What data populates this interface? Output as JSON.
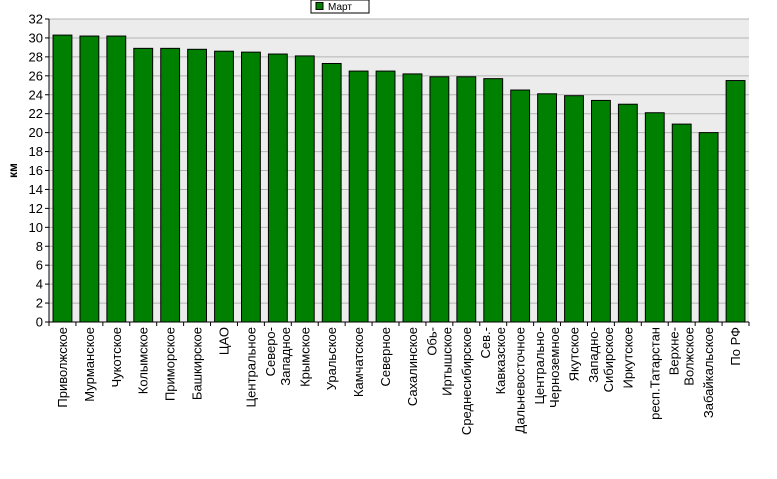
{
  "chart_data": {
    "type": "bar",
    "ylabel": "км",
    "ylim": [
      0,
      32
    ],
    "ytick_step": 2,
    "grid": true,
    "legend_position": "top-center",
    "series": [
      {
        "name": "Март",
        "color": "#008000",
        "values": [
          30.3,
          30.2,
          30.2,
          28.9,
          28.9,
          28.8,
          28.6,
          28.5,
          28.3,
          28.1,
          27.3,
          26.5,
          26.5,
          26.2,
          25.9,
          25.9,
          25.7,
          24.5,
          24.1,
          23.9,
          23.4,
          23.0,
          22.1,
          20.9,
          20.0,
          25.5
        ]
      }
    ],
    "categories": [
      [
        "Приволжское"
      ],
      [
        "Мурманское"
      ],
      [
        "Чукотское"
      ],
      [
        "Колымское"
      ],
      [
        "Приморское"
      ],
      [
        "Башкирское"
      ],
      [
        "ЦАО"
      ],
      [
        "Центральное"
      ],
      [
        "Северо-",
        "Западное"
      ],
      [
        "Крымское"
      ],
      [
        "Уральское"
      ],
      [
        "Камчатское"
      ],
      [
        "Северное"
      ],
      [
        "Сахалинское"
      ],
      [
        "Обь-",
        "Иртышское"
      ],
      [
        "Среднесибирское"
      ],
      [
        "Сев.-",
        "Кавказское"
      ],
      [
        "Дальневосточное"
      ],
      [
        "Центрально-",
        "Черноземное"
      ],
      [
        "Якутское"
      ],
      [
        "Западно-",
        "Сибирское"
      ],
      [
        "Иркутское"
      ],
      [
        "респ.Татарстан"
      ],
      [
        "Верхне-",
        "Волжское"
      ],
      [
        "Забайкальское"
      ],
      [
        "По РФ"
      ]
    ],
    "colors": {
      "plot_background": "#ececec",
      "grid": "#b4b4b4",
      "bar_fill": "#008000",
      "bar_stroke": "#000000"
    }
  }
}
